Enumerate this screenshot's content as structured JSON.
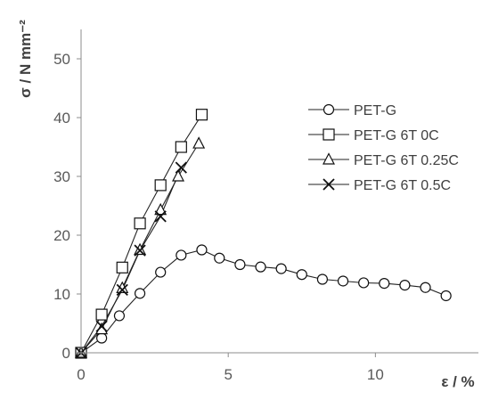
{
  "chart_data": {
    "type": "scatter",
    "title": "",
    "xlabel": "ε / %",
    "ylabel": "σ / N mm⁻²",
    "xlim": [
      0,
      13.5
    ],
    "ylim": [
      0,
      55
    ],
    "xticks": [
      "0",
      "5",
      "10"
    ],
    "yticks": [
      "0",
      "10",
      "20",
      "30",
      "40",
      "50"
    ],
    "grid": false,
    "legend_position": "right",
    "series": [
      {
        "name": "PET-G",
        "marker": "circle",
        "points": [
          [
            0,
            0
          ],
          [
            0.7,
            2.5
          ],
          [
            1.3,
            6.3
          ],
          [
            2.0,
            10.1
          ],
          [
            2.7,
            13.7
          ],
          [
            3.4,
            16.6
          ],
          [
            4.1,
            17.5
          ],
          [
            4.7,
            16.1
          ],
          [
            5.4,
            15.0
          ],
          [
            6.1,
            14.6
          ],
          [
            6.8,
            14.3
          ],
          [
            7.5,
            13.3
          ],
          [
            8.2,
            12.5
          ],
          [
            8.9,
            12.2
          ],
          [
            9.6,
            11.9
          ],
          [
            10.3,
            11.8
          ],
          [
            11.0,
            11.5
          ],
          [
            11.7,
            11.1
          ],
          [
            12.4,
            9.7
          ]
        ]
      },
      {
        "name": "PET-G 6T 0C",
        "marker": "square",
        "points": [
          [
            0,
            0
          ],
          [
            0.7,
            6.5
          ],
          [
            1.4,
            14.5
          ],
          [
            2.0,
            22.0
          ],
          [
            2.7,
            28.5
          ],
          [
            3.4,
            35.0
          ],
          [
            4.1,
            40.5
          ]
        ]
      },
      {
        "name": "PET-G 6T 0.25C",
        "marker": "triangle",
        "points": [
          [
            0,
            0
          ],
          [
            0.7,
            4.0
          ],
          [
            1.4,
            11.0
          ],
          [
            2.0,
            17.5
          ],
          [
            2.7,
            24.3
          ],
          [
            3.3,
            30.0
          ],
          [
            4.0,
            35.6
          ]
        ]
      },
      {
        "name": "PET-G 6T 0.5C",
        "marker": "cross",
        "points": [
          [
            0,
            0
          ],
          [
            0.7,
            4.5
          ],
          [
            1.4,
            10.7
          ],
          [
            2.0,
            17.4
          ],
          [
            2.7,
            23.2
          ],
          [
            3.4,
            31.5
          ]
        ]
      }
    ]
  }
}
